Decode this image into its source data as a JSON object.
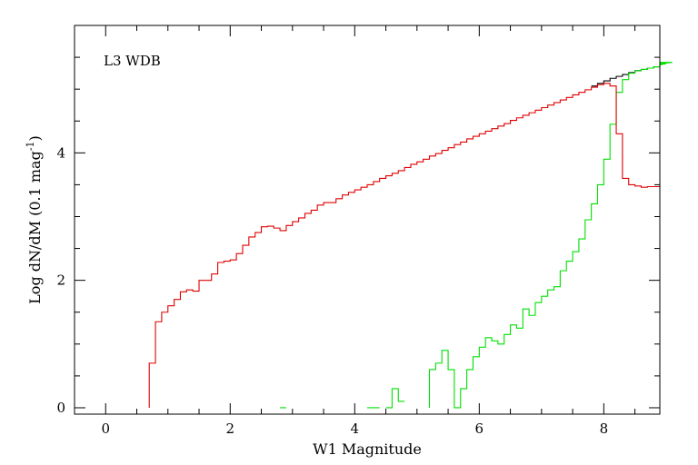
{
  "chart_data": {
    "type": "line",
    "step": true,
    "panel_label": "L3 WDB",
    "xlabel": "W1 Magnitude",
    "ylabel": "Log dN/dM (0.1 mag",
    "ylabel_sup": "-1",
    "ylabel_close": ")",
    "xlim": [
      -0.5,
      8.9
    ],
    "ylim": [
      -0.1,
      6.0
    ],
    "x_ticks": [
      {
        "value": 0,
        "label": "0"
      },
      {
        "value": 2,
        "label": "2"
      },
      {
        "value": 4,
        "label": "4"
      },
      {
        "value": 6,
        "label": "6"
      },
      {
        "value": 8,
        "label": "8"
      }
    ],
    "y_ticks": [
      {
        "value": 0,
        "label": "0"
      },
      {
        "value": 2,
        "label": "2"
      },
      {
        "value": 4,
        "label": "4"
      }
    ],
    "x_minor_step": 0.5,
    "y_minor_step": 0.5,
    "bin_width": 0.1,
    "series": [
      {
        "color": "#000000",
        "bin_start": 7.8,
        "values": [
          5.05,
          5.09,
          5.13,
          5.17,
          5.2,
          5.23,
          5.26,
          5.29,
          5.31,
          5.33,
          5.35
        ]
      },
      {
        "color": "#00e000",
        "bin_start": 2.8,
        "values": [
          0.0,
          null,
          null,
          null,
          null,
          null,
          null,
          null,
          null,
          null,
          null,
          null,
          null,
          null,
          0.0,
          0.0,
          null,
          0.0,
          0.3,
          0.1,
          null,
          null,
          null,
          null,
          0.6,
          0.7,
          0.9,
          0.6,
          0.0,
          0.3,
          0.6,
          0.8,
          0.95,
          1.1,
          1.05,
          1.0,
          1.15,
          1.3,
          1.25,
          1.55,
          1.45,
          1.65,
          1.75,
          1.85,
          1.9,
          2.15,
          2.3,
          2.45,
          2.65,
          2.95,
          3.2,
          3.5,
          3.9,
          4.45,
          4.95,
          5.15,
          5.25,
          5.29,
          5.31,
          5.33,
          5.35,
          5.38,
          5.4,
          5.42
        ]
      },
      {
        "color": "#e00000",
        "bin_start": 0.7,
        "values": [
          0.7,
          1.35,
          1.5,
          1.6,
          1.7,
          1.82,
          1.85,
          1.83,
          2.0,
          2.0,
          2.1,
          2.28,
          2.3,
          2.32,
          2.42,
          2.55,
          2.68,
          2.75,
          2.84,
          2.85,
          2.82,
          2.78,
          2.86,
          2.92,
          2.98,
          3.05,
          3.1,
          3.18,
          3.22,
          3.22,
          3.28,
          3.34,
          3.38,
          3.42,
          3.46,
          3.5,
          3.55,
          3.6,
          3.64,
          3.68,
          3.72,
          3.77,
          3.82,
          3.86,
          3.9,
          3.95,
          3.99,
          4.04,
          4.08,
          4.13,
          4.17,
          4.22,
          4.26,
          4.3,
          4.34,
          4.38,
          4.42,
          4.46,
          4.51,
          4.55,
          4.59,
          4.63,
          4.67,
          4.71,
          4.75,
          4.79,
          4.83,
          4.87,
          4.91,
          4.95,
          4.99,
          5.03,
          5.07,
          5.09,
          5.05,
          4.3,
          3.6,
          3.5,
          3.48,
          3.46,
          3.47,
          3.47,
          3.5
        ]
      }
    ]
  }
}
